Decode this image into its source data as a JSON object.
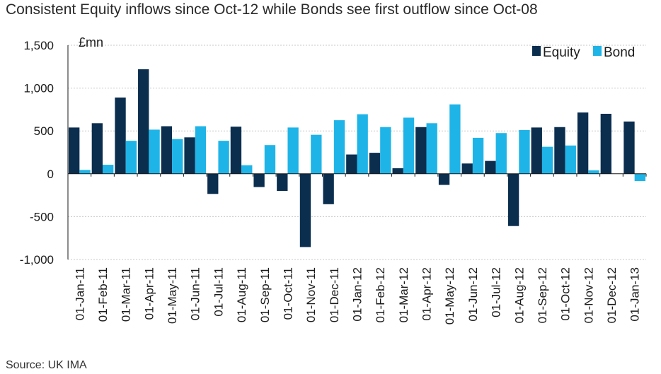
{
  "title": "Consistent Equity inflows since Oct-12 while Bonds see first outflow since Oct-08",
  "source": "Source: UK IMA",
  "chart_data": {
    "type": "bar",
    "unit_label": "£mn",
    "categories": [
      "01-Jan-11",
      "01-Feb-11",
      "01-Mar-11",
      "01-Apr-11",
      "01-May-11",
      "01-Jun-11",
      "01-Jul-11",
      "01-Aug-11",
      "01-Sep-11",
      "01-Oct-11",
      "01-Nov-11",
      "01-Dec-11",
      "01-Jan-12",
      "01-Feb-12",
      "01-Mar-12",
      "01-Apr-12",
      "01-May-12",
      "01-Jun-12",
      "01-Jul-12",
      "01-Aug-12",
      "01-Sep-12",
      "01-Oct-12",
      "01-Nov-12",
      "01-Dec-12",
      "01-Jan-13"
    ],
    "series": [
      {
        "name": "Equity",
        "color": "#0b2e4f",
        "values": [
          540,
          590,
          890,
          1220,
          555,
          425,
          -235,
          550,
          -155,
          -200,
          -855,
          -355,
          225,
          245,
          65,
          545,
          -130,
          120,
          150,
          -610,
          540,
          545,
          715,
          700,
          610
        ]
      },
      {
        "name": "Bond",
        "color": "#1fb4e8",
        "values": [
          45,
          105,
          385,
          515,
          405,
          555,
          385,
          100,
          335,
          540,
          455,
          625,
          695,
          545,
          655,
          590,
          810,
          420,
          475,
          510,
          315,
          330,
          40,
          0,
          -85
        ]
      }
    ],
    "ylim": [
      -1000,
      1500
    ],
    "yticks": [
      -1000,
      -500,
      0,
      500,
      1000,
      1500
    ],
    "ytick_labels": [
      "-1,000",
      "-500",
      "0",
      "500",
      "1,000",
      "1,500"
    ],
    "grid": true,
    "legend": "top-right"
  }
}
